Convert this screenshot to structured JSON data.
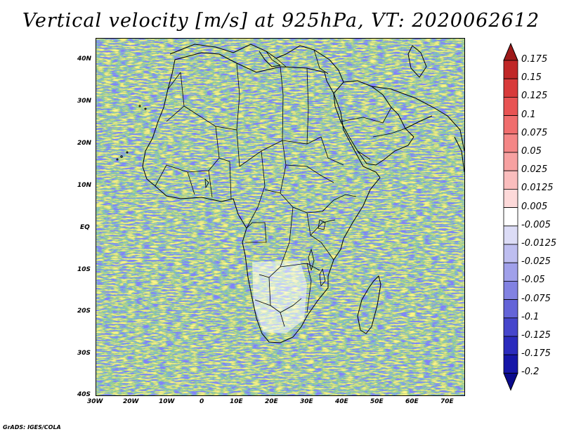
{
  "title": "Vertical velocity [m/s] at 925hPa, VT: 2020062612",
  "footer": "GrADS: IGES/COLA",
  "lon_labels": [
    "30W",
    "20W",
    "10W",
    "0",
    "10E",
    "20E",
    "30E",
    "40E",
    "50E",
    "60E",
    "70E"
  ],
  "lat_labels": [
    "40N",
    "30N",
    "20N",
    "10N",
    "EQ",
    "10S",
    "20S",
    "30S",
    "40S"
  ],
  "colorbar": {
    "labels": [
      "0.175",
      "0.15",
      "0.125",
      "0.1",
      "0.075",
      "0.05",
      "0.025",
      "0.0125",
      "0.005",
      "-0.005",
      "-0.0125",
      "-0.025",
      "-0.05",
      "-0.075",
      "-0.1",
      "-0.125",
      "-0.175",
      "-0.2"
    ],
    "colors": [
      "#9e1a1a",
      "#c02727",
      "#d83a3a",
      "#e85353",
      "#f06d6d",
      "#f48686",
      "#f7a1a1",
      "#fabdbd",
      "#fdd9d9",
      "#ffffff",
      "#dcdcf6",
      "#bebef0",
      "#a0a0ea",
      "#8282e2",
      "#6464d8",
      "#4646cc",
      "#2b2bbd",
      "#1616a8",
      "#0a0a8c"
    ]
  }
}
